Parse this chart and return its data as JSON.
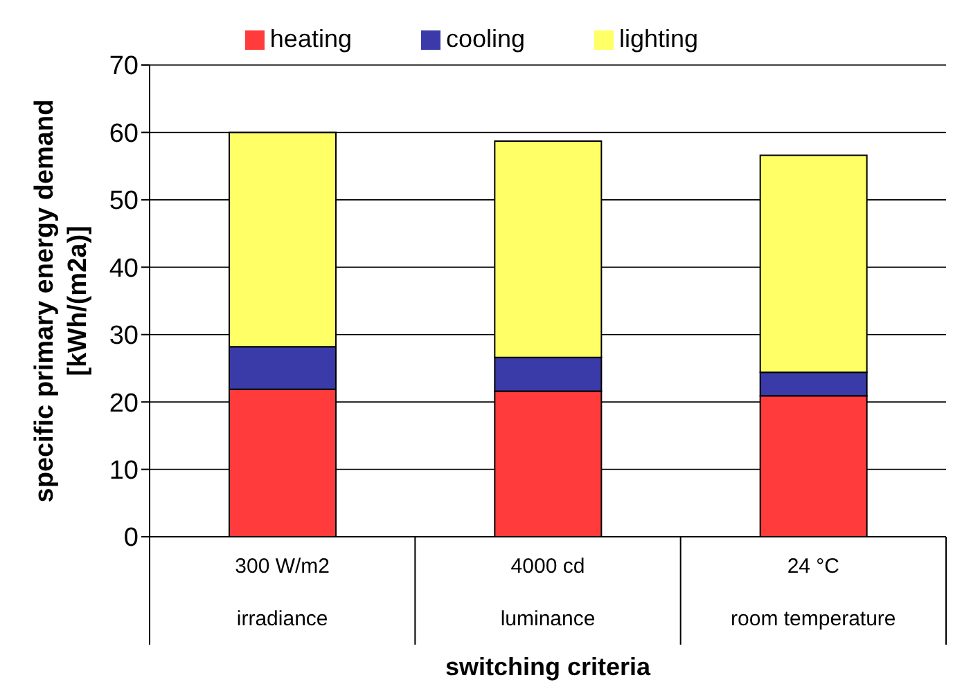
{
  "chart_data": {
    "type": "bar",
    "stacked": true,
    "xlabel": "switching criteria",
    "ylabel": "specific primary energy demand\n[kWh/(m2a)]",
    "categories": [
      "300 W/m2\nirradiance",
      "4000 cd\nluminance",
      "24 °C\nroom temperature"
    ],
    "series": [
      {
        "name": "heating",
        "color": "#ff3b3b",
        "values": [
          21.9,
          21.6,
          20.9
        ]
      },
      {
        "name": "cooling",
        "color": "#3a3aa8",
        "values": [
          6.3,
          5.0,
          3.5
        ]
      },
      {
        "name": "lighting",
        "color": "#ffff66",
        "values": [
          31.8,
          32.1,
          32.2
        ]
      }
    ],
    "ylim": [
      0,
      70
    ],
    "yticks": [
      0,
      10,
      20,
      30,
      40,
      50,
      60,
      70
    ],
    "grid": "y",
    "legend": "top"
  }
}
